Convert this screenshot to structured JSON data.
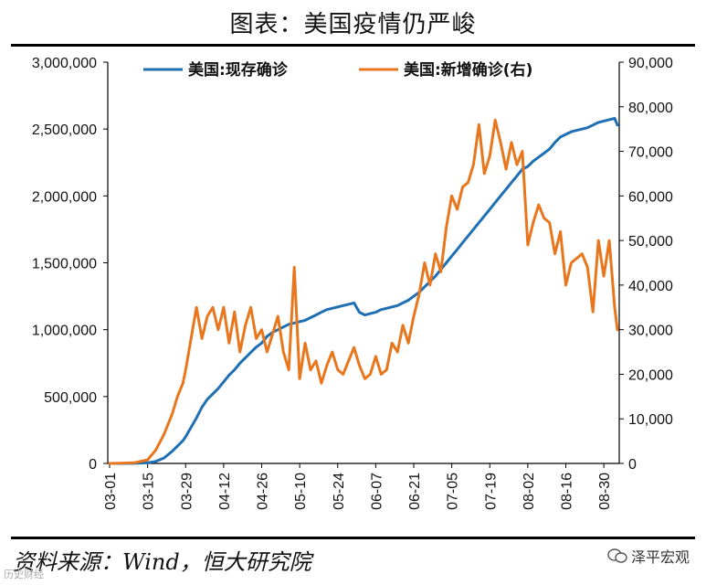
{
  "title": "图表：美国疫情仍严峻",
  "source": "资料来源：Wind，恒大研究院",
  "watermark": "泽平宏观",
  "watermark_corner": "历史财经",
  "colors": {
    "left_series": "#1F6FB4",
    "right_series": "#E8761C",
    "axis": "#000000"
  },
  "chart_data": {
    "type": "line",
    "title": "图表：美国疫情仍严峻",
    "x": [
      "03-01",
      "03-05",
      "03-10",
      "03-15",
      "03-18",
      "03-21",
      "03-24",
      "03-26",
      "03-28",
      "03-29",
      "03-31",
      "04-02",
      "04-04",
      "04-06",
      "04-08",
      "04-10",
      "04-12",
      "04-14",
      "04-16",
      "04-18",
      "04-20",
      "04-22",
      "04-24",
      "04-26",
      "04-28",
      "04-30",
      "05-02",
      "05-04",
      "05-06",
      "05-08",
      "05-10",
      "05-12",
      "05-14",
      "05-16",
      "05-18",
      "05-20",
      "05-22",
      "05-24",
      "05-26",
      "05-28",
      "05-30",
      "06-01",
      "06-03",
      "06-05",
      "06-07",
      "06-09",
      "06-11",
      "06-13",
      "06-15",
      "06-17",
      "06-19",
      "06-21",
      "06-23",
      "06-25",
      "06-27",
      "06-29",
      "07-01",
      "07-03",
      "07-05",
      "07-07",
      "07-09",
      "07-11",
      "07-13",
      "07-15",
      "07-17",
      "07-19",
      "07-21",
      "07-23",
      "07-25",
      "07-27",
      "07-29",
      "07-31",
      "08-02",
      "08-04",
      "08-06",
      "08-08",
      "08-10",
      "08-12",
      "08-14",
      "08-16",
      "08-18",
      "08-20",
      "08-22",
      "08-24",
      "08-26",
      "08-28",
      "08-30",
      "09-01",
      "09-03",
      "09-04"
    ],
    "x_ticks": [
      "03-01",
      "03-15",
      "03-29",
      "04-12",
      "04-26",
      "05-10",
      "05-24",
      "06-07",
      "06-21",
      "07-05",
      "07-19",
      "08-02",
      "08-16",
      "08-30"
    ],
    "series": [
      {
        "name": "美国:现存确诊",
        "axis": "left",
        "values": [
          0,
          0,
          500,
          5000,
          15000,
          40000,
          90000,
          130000,
          170000,
          200000,
          270000,
          340000,
          420000,
          480000,
          520000,
          560000,
          610000,
          660000,
          700000,
          750000,
          790000,
          830000,
          870000,
          900000,
          950000,
          980000,
          1000000,
          1020000,
          1040000,
          1050000,
          1060000,
          1070000,
          1090000,
          1110000,
          1130000,
          1150000,
          1160000,
          1170000,
          1180000,
          1190000,
          1200000,
          1130000,
          1110000,
          1120000,
          1130000,
          1150000,
          1160000,
          1170000,
          1180000,
          1200000,
          1220000,
          1250000,
          1280000,
          1320000,
          1360000,
          1400000,
          1450000,
          1500000,
          1550000,
          1600000,
          1650000,
          1700000,
          1750000,
          1800000,
          1850000,
          1900000,
          1950000,
          2000000,
          2050000,
          2100000,
          2150000,
          2200000,
          2220000,
          2260000,
          2290000,
          2320000,
          2350000,
          2400000,
          2440000,
          2460000,
          2480000,
          2490000,
          2500000,
          2510000,
          2530000,
          2550000,
          2560000,
          2570000,
          2580000,
          2530000
        ]
      },
      {
        "name": "美国:新增确诊(右)",
        "axis": "right",
        "values": [
          0,
          50,
          150,
          800,
          3000,
          6500,
          11000,
          15000,
          18000,
          21000,
          28000,
          35000,
          28000,
          33000,
          35000,
          30000,
          35000,
          27000,
          34000,
          25000,
          31000,
          35000,
          28000,
          30000,
          25000,
          29000,
          33000,
          25000,
          21000,
          44000,
          19000,
          27000,
          21000,
          23000,
          18000,
          22000,
          25000,
          21000,
          20000,
          23000,
          26000,
          22000,
          19000,
          20000,
          24000,
          20000,
          21000,
          27000,
          25000,
          31000,
          27000,
          33000,
          38000,
          45000,
          40000,
          47000,
          43000,
          53000,
          60000,
          57000,
          62000,
          63000,
          67000,
          76000,
          65000,
          69000,
          77000,
          72000,
          66000,
          72000,
          67000,
          70000,
          49000,
          54000,
          58000,
          55000,
          54000,
          47000,
          52000,
          40000,
          45000,
          46000,
          47000,
          44000,
          34000,
          50000,
          42000,
          50000,
          35000,
          30000
        ]
      }
    ],
    "y_left": {
      "ylim": [
        0,
        3000000
      ],
      "ticks": [
        "0",
        "500,000",
        "1,000,000",
        "1,500,000",
        "2,000,000",
        "2,500,000",
        "3,000,000"
      ]
    },
    "y_right": {
      "ylim": [
        0,
        90000
      ],
      "ticks": [
        "0",
        "10,000",
        "20,000",
        "30,000",
        "40,000",
        "50,000",
        "60,000",
        "70,000",
        "80,000",
        "90,000"
      ]
    },
    "legend": [
      "美国:现存确诊",
      "美国:新增确诊(右)"
    ],
    "legend_position": "top",
    "grid": false
  }
}
